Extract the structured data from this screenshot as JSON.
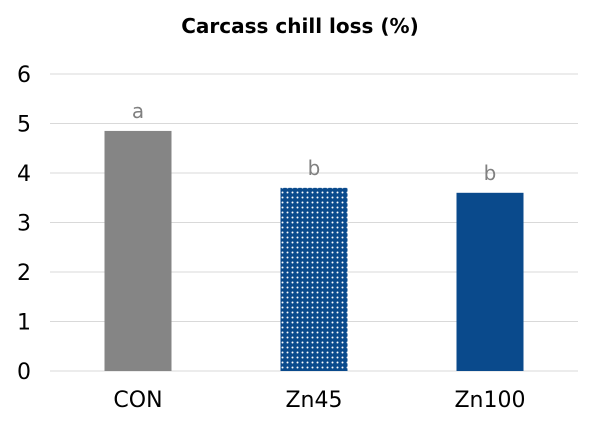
{
  "chart_data": {
    "type": "bar",
    "title": "Carcass chill loss (%)",
    "xlabel": "",
    "ylabel": "",
    "categories": [
      "CON",
      "Zn45",
      "Zn100"
    ],
    "values": [
      4.85,
      3.7,
      3.6
    ],
    "data_labels": [
      "a",
      "b",
      "b"
    ],
    "bar_styles": [
      "solid",
      "dotted",
      "solid"
    ],
    "bar_colors": [
      "#858585",
      "#0a4a8c",
      "#0a4a8c"
    ],
    "yticks": [
      "0",
      "1",
      "2",
      "3",
      "4",
      "5",
      "6"
    ],
    "ylim": [
      0,
      6
    ],
    "grid": true,
    "legend": "none"
  },
  "colors": {
    "gridline": "#d9d9d9",
    "tick_text": "#000000",
    "data_label_text": "#808080"
  }
}
